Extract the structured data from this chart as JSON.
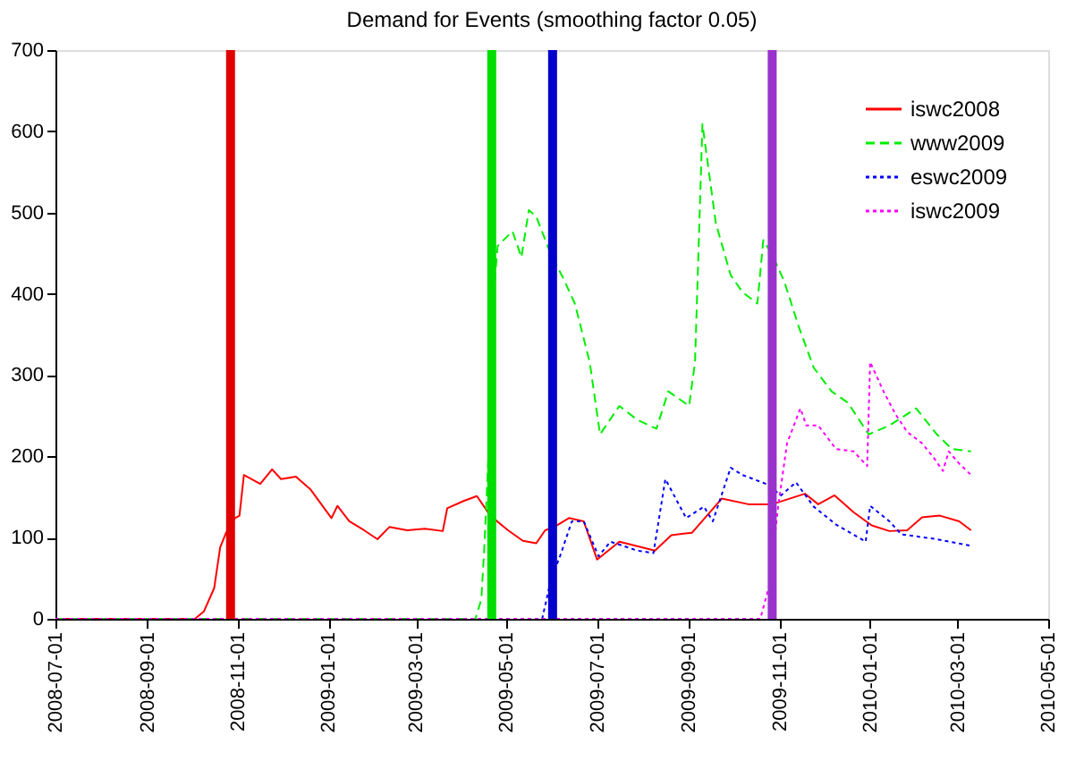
{
  "chart_data": {
    "type": "line",
    "title": "Demand for Events (smoothing factor 0.05)",
    "xlim": [
      "2008-07-01",
      "2010-05-01"
    ],
    "xticks": [
      "2008-07-01",
      "2008-09-01",
      "2008-11-01",
      "2009-01-01",
      "2009-03-01",
      "2009-05-01",
      "2009-07-01",
      "2009-09-01",
      "2009-11-01",
      "2010-01-01",
      "2010-03-01",
      "2010-05-01"
    ],
    "ylim": [
      0,
      700
    ],
    "yticks": [
      0,
      100,
      200,
      300,
      400,
      500,
      600,
      700
    ],
    "grid": false,
    "legend": "top right",
    "series": [
      {
        "name": "iswc2008",
        "color": "#ff0000",
        "line_style": "solid",
        "x": [
          "2008-07-01",
          "2008-10-03",
          "2008-10-09",
          "2008-10-16",
          "2008-10-20",
          "2008-10-24",
          "2008-10-30",
          "2008-11-02",
          "2008-11-05",
          "2008-11-16",
          "2008-11-24",
          "2008-11-30",
          "2008-12-10",
          "2008-12-20",
          "2009-01-03",
          "2009-01-07",
          "2009-01-15",
          "2009-01-25",
          "2009-02-03",
          "2009-02-11",
          "2009-02-23",
          "2009-03-07",
          "2009-03-19",
          "2009-03-22",
          "2009-04-02",
          "2009-04-11",
          "2009-04-20",
          "2009-05-02",
          "2009-05-12",
          "2009-05-21",
          "2009-05-27",
          "2009-06-02",
          "2009-06-12",
          "2009-06-22",
          "2009-07-01",
          "2009-07-16",
          "2009-08-09",
          "2009-08-20",
          "2009-09-03",
          "2009-09-13",
          "2009-09-23",
          "2009-10-11",
          "2009-10-27",
          "2009-11-18",
          "2009-11-27",
          "2009-12-08",
          "2009-12-21",
          "2010-01-02",
          "2010-01-14",
          "2010-01-26",
          "2010-02-05",
          "2010-02-17",
          "2010-03-02",
          "2010-03-10"
        ],
        "values": [
          0,
          0,
          9,
          38,
          88,
          106,
          124,
          127,
          177,
          166,
          184,
          172,
          175,
          159,
          124,
          139,
          120,
          109,
          98,
          113,
          109,
          111,
          108,
          136,
          145,
          151,
          127,
          109,
          96,
          93,
          109,
          113,
          124,
          120,
          73,
          95,
          84,
          103,
          106,
          127,
          148,
          141,
          141,
          154,
          141,
          152,
          131,
          115,
          108,
          109,
          125,
          127,
          120,
          109
        ]
      },
      {
        "name": "www2009",
        "color": "#00ee00",
        "line_style": "dashed",
        "x": [
          "2008-07-01",
          "2009-04-10",
          "2009-04-14",
          "2009-04-16",
          "2009-04-19",
          "2009-04-23",
          "2009-04-25",
          "2009-05-05",
          "2009-05-11",
          "2009-05-16",
          "2009-05-21",
          "2009-05-31",
          "2009-06-08",
          "2009-06-16",
          "2009-06-26",
          "2009-07-03",
          "2009-07-16",
          "2009-07-28",
          "2009-08-10",
          "2009-08-18",
          "2009-09-01",
          "2009-09-05",
          "2009-09-10",
          "2009-09-19",
          "2009-09-29",
          "2009-10-07",
          "2009-10-17",
          "2009-10-21",
          "2009-10-27",
          "2009-11-04",
          "2009-11-14",
          "2009-11-24",
          "2009-12-06",
          "2009-12-17",
          "2009-12-31",
          "2010-01-14",
          "2010-02-01",
          "2010-02-15",
          "2010-02-25",
          "2010-03-10"
        ],
        "values": [
          0,
          0,
          24,
          88,
          209,
          416,
          459,
          477,
          445,
          503,
          495,
          448,
          420,
          388,
          316,
          227,
          262,
          245,
          234,
          280,
          262,
          316,
          609,
          487,
          423,
          402,
          388,
          466,
          448,
          416,
          359,
          309,
          280,
          266,
          227,
          238,
          259,
          227,
          209,
          206
        ]
      },
      {
        "name": "eswc2009",
        "color": "#0000ff",
        "line_style": "dotted",
        "x": [
          "2008-07-01",
          "2009-05-25",
          "2009-05-31",
          "2009-06-06",
          "2009-06-14",
          "2009-06-22",
          "2009-07-02",
          "2009-07-10",
          "2009-07-28",
          "2009-08-08",
          "2009-08-16",
          "2009-08-30",
          "2009-09-11",
          "2009-09-17",
          "2009-09-29",
          "2009-10-07",
          "2009-10-23",
          "2009-11-02",
          "2009-11-12",
          "2009-11-24",
          "2009-12-09",
          "2009-12-29",
          "2010-01-01",
          "2010-01-14",
          "2010-01-22",
          "2010-02-15",
          "2010-03-10"
        ],
        "values": [
          0,
          0,
          49,
          77,
          120,
          120,
          77,
          95,
          84,
          81,
          172,
          124,
          138,
          120,
          186,
          177,
          166,
          152,
          168,
          138,
          116,
          95,
          139,
          120,
          104,
          98,
          90
        ]
      },
      {
        "name": "iswc2009",
        "color": "#ff00ff",
        "line_style": "dotted",
        "x": [
          "2008-07-01",
          "2009-10-19",
          "2009-10-25",
          "2009-10-31",
          "2009-11-06",
          "2009-11-15",
          "2009-11-19",
          "2009-11-27",
          "2009-12-09",
          "2009-12-21",
          "2009-12-30",
          "2010-01-01",
          "2010-01-10",
          "2010-01-18",
          "2010-01-26",
          "2010-02-05",
          "2010-02-13",
          "2010-02-19",
          "2010-02-23",
          "2010-03-02",
          "2010-03-10"
        ],
        "values": [
          0,
          0,
          41,
          138,
          216,
          259,
          238,
          238,
          209,
          206,
          188,
          316,
          280,
          252,
          230,
          216,
          198,
          182,
          206,
          191,
          177
        ]
      }
    ],
    "ref_lines": [
      {
        "axis": "x",
        "value": "2008-10-27",
        "color": "#e00000",
        "line_style": "solid"
      },
      {
        "axis": "x",
        "value": "2009-04-21",
        "color": "#00dd00",
        "line_style": "solid"
      },
      {
        "axis": "x",
        "value": "2009-06-01",
        "color": "#0000cc",
        "line_style": "solid"
      },
      {
        "axis": "x",
        "value": "2009-10-27",
        "color": "#9932cc",
        "line_style": "solid"
      }
    ]
  }
}
